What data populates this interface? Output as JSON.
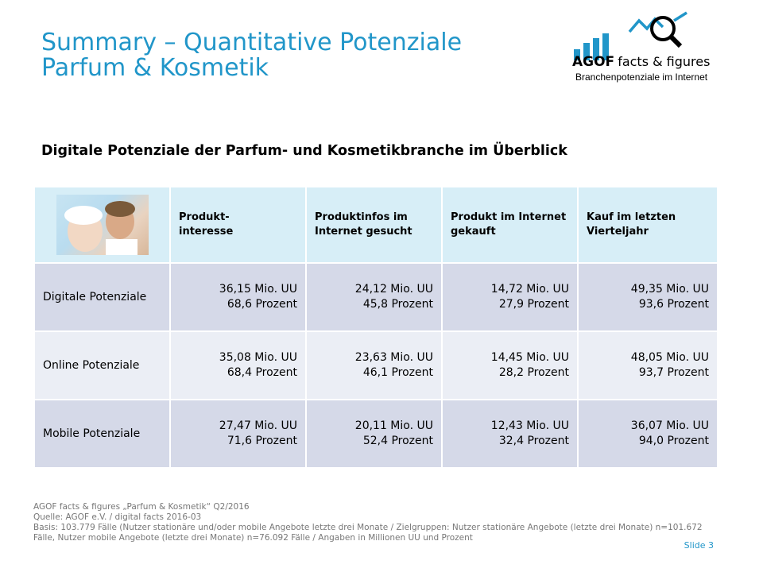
{
  "title": {
    "line1": "Summary – Quantitative Potenziale",
    "line2": "Parfum & Kosmetik"
  },
  "logo": {
    "brand": "AGOF",
    "tagline": "facts & figures",
    "subline": "Branchenpotenziale im Internet",
    "accent": "#2196c9"
  },
  "subtitle": "Digitale Potenziale der Parfum- und Kosmetikbranche im Überblick",
  "table": {
    "headers": [
      "Produkt-\ninteresse",
      "Produktinfos im Internet gesucht",
      "Produkt im Internet gekauft",
      "Kauf im letzten Vierteljahr"
    ],
    "rows": [
      {
        "label": "Digitale Potenziale",
        "cells": [
          {
            "mio": "36,15 Mio. UU",
            "pct": "68,6 Prozent"
          },
          {
            "mio": "24,12 Mio. UU",
            "pct": "45,8 Prozent"
          },
          {
            "mio": "14,72 Mio. UU",
            "pct": "27,9 Prozent"
          },
          {
            "mio": "49,35 Mio. UU",
            "pct": "93,6 Prozent"
          }
        ]
      },
      {
        "label": "Online Potenziale",
        "cells": [
          {
            "mio": "35,08 Mio. UU",
            "pct": "68,4 Prozent"
          },
          {
            "mio": "23,63 Mio. UU",
            "pct": "46,1 Prozent"
          },
          {
            "mio": "14,45 Mio. UU",
            "pct": "28,2 Prozent"
          },
          {
            "mio": "48,05 Mio. UU",
            "pct": "93,7 Prozent"
          }
        ]
      },
      {
        "label": "Mobile Potenziale",
        "cells": [
          {
            "mio": "27,47 Mio. UU",
            "pct": "71,6 Prozent"
          },
          {
            "mio": "20,11 Mio. UU",
            "pct": "52,4 Prozent"
          },
          {
            "mio": "12,43 Mio. UU",
            "pct": "32,4 Prozent"
          },
          {
            "mio": "36,07 Mio. UU",
            "pct": "94,0 Prozent"
          }
        ]
      }
    ]
  },
  "footer": {
    "line1": "AGOF facts & figures „Parfum & Kosmetik“ Q2/2016",
    "line2": "Quelle: AGOF e.V. / digital facts 2016-03",
    "line3": "Basis: 103.779 Fälle (Nutzer stationäre und/oder mobile Angebote letzte drei Monate / Zielgruppen: Nutzer stationäre Angebote (letzte drei Monate) n=101.672 Fälle, Nutzer mobile Angebote (letzte drei Monate) n=76.092 Fälle / Angaben in Millionen UU und Prozent"
  },
  "slide_number": "Slide 3"
}
